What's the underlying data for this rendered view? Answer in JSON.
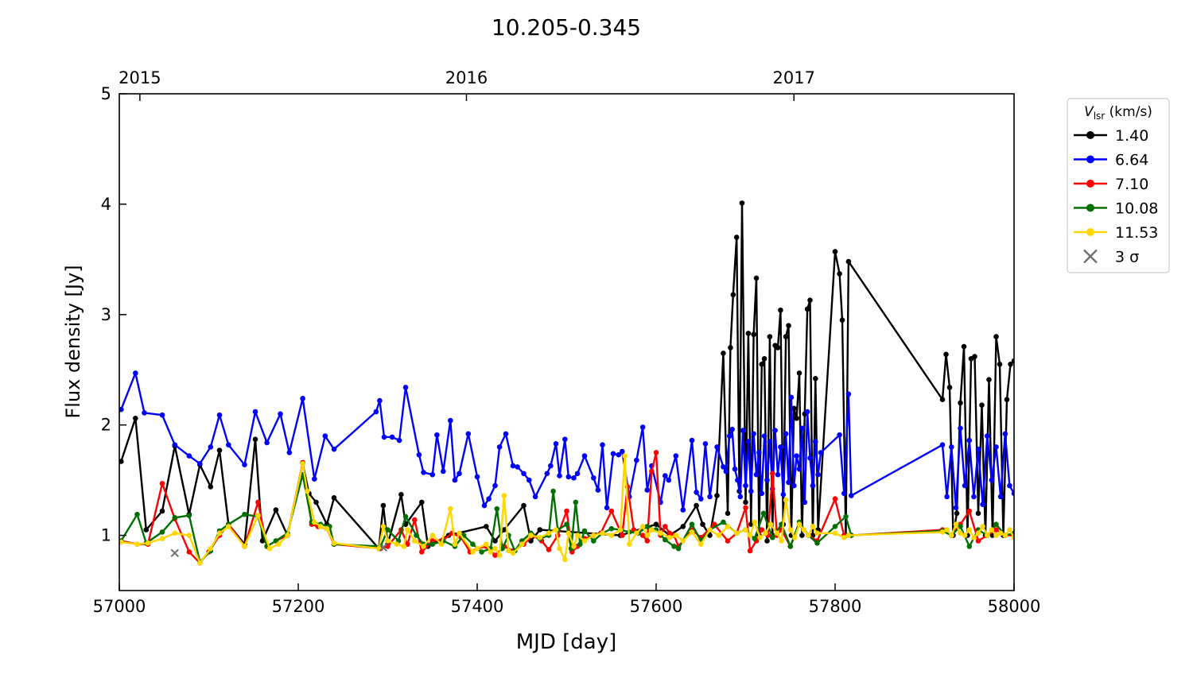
{
  "chart_data": {
    "type": "line",
    "title": "10.205-0.345",
    "xlabel": "MJD [day]",
    "ylabel": "Flux density [Jy]",
    "xlim": [
      57000,
      58000
    ],
    "ylim": [
      0.5,
      5.0
    ],
    "x_ticks": [
      {
        "value": 57000,
        "label": "57000"
      },
      {
        "value": 57200,
        "label": "57200"
      },
      {
        "value": 57400,
        "label": "57400"
      },
      {
        "value": 57600,
        "label": "57600"
      },
      {
        "value": 57800,
        "label": "57800"
      },
      {
        "value": 58000,
        "label": "58000"
      }
    ],
    "y_ticks": [
      {
        "value": 1,
        "label": "1"
      },
      {
        "value": 2,
        "label": "2"
      },
      {
        "value": 3,
        "label": "3"
      },
      {
        "value": 4,
        "label": "4"
      },
      {
        "value": 5,
        "label": "5"
      }
    ],
    "top_axis_ticks": [
      {
        "value": 57023,
        "label": "2015"
      },
      {
        "value": 57388,
        "label": "2016"
      },
      {
        "value": 57754,
        "label": "2017"
      }
    ],
    "legend": {
      "title_main": "V",
      "title_sub": "lsr",
      "title_unit": " (km/s)",
      "placement": "outside-right-top",
      "sigma_label": "3 σ",
      "sigma_color": "#707070"
    },
    "series": [
      {
        "name": "1.40",
        "color": "#000000",
        "x": [
          57002,
          57018,
          57030,
          57048,
          57062,
          57078,
          57090,
          57102,
          57112,
          57122,
          57140,
          57152,
          57160,
          57175,
          57188,
          57205,
          57212,
          57220,
          57232,
          57240,
          57290,
          57295,
          57300,
          57315,
          57320,
          57338,
          57345,
          57368,
          57410,
          57420,
          57430,
          57452,
          57460,
          57470,
          57560,
          57600,
          57615,
          57630,
          57645,
          57652,
          57660,
          57668,
          57675,
          57680,
          57683,
          57686,
          57690,
          57693,
          57696,
          57700,
          57703,
          57706,
          57709,
          57712,
          57715,
          57718,
          57721,
          57724,
          57727,
          57730,
          57733,
          57736,
          57739,
          57742,
          57745,
          57748,
          57751,
          57754,
          57757,
          57760,
          57763,
          57766,
          57769,
          57772,
          57775,
          57778,
          57781,
          57800,
          57805,
          57808,
          57812,
          57815,
          57920,
          57924,
          57928,
          57932,
          57936,
          57940,
          57944,
          57948,
          57952,
          57956,
          57960,
          57964,
          57968,
          57972,
          57976,
          57980,
          57984,
          57988,
          57992,
          57996,
          58000
        ],
        "y": [
          1.67,
          2.06,
          1.05,
          1.22,
          1.81,
          1.19,
          1.64,
          1.44,
          1.77,
          1.1,
          0.92,
          1.87,
          0.95,
          1.23,
          1.0,
          1.65,
          1.38,
          1.3,
          1.1,
          1.34,
          0.88,
          1.27,
          0.92,
          1.37,
          1.1,
          1.3,
          0.9,
          1.0,
          1.08,
          0.95,
          1.05,
          1.27,
          0.95,
          1.05,
          1.0,
          1.1,
          1.0,
          1.08,
          1.27,
          1.1,
          1.0,
          1.36,
          2.65,
          1.2,
          2.7,
          3.18,
          3.7,
          1.4,
          4.01,
          1.3,
          2.83,
          1.1,
          2.82,
          3.33,
          1.0,
          2.55,
          2.6,
          0.95,
          2.8,
          1.0,
          2.72,
          2.7,
          3.04,
          1.1,
          2.8,
          2.9,
          1.0,
          2.15,
          2.06,
          2.47,
          1.0,
          2.1,
          3.05,
          3.13,
          1.0,
          2.42,
          1.05,
          3.57,
          3.37,
          2.95,
          1.0,
          3.48,
          2.23,
          2.64,
          2.34,
          1.0,
          1.2,
          2.2,
          2.71,
          1.0,
          2.6,
          2.62,
          1.2,
          2.18,
          1.0,
          2.41,
          1.0,
          2.8,
          2.55,
          1.0,
          2.23,
          2.55,
          2.58
        ]
      },
      {
        "name": "6.64",
        "color": "#0000ff",
        "x": [
          57002,
          57018,
          57028,
          57048,
          57062,
          57078,
          57090,
          57102,
          57112,
          57122,
          57140,
          57152,
          57165,
          57180,
          57190,
          57205,
          57218,
          57230,
          57240,
          57287,
          57291,
          57296,
          57305,
          57313,
          57320,
          57335,
          57340,
          57350,
          57355,
          57362,
          57370,
          57375,
          57380,
          57390,
          57400,
          57408,
          57413,
          57420,
          57425,
          57432,
          57440,
          57445,
          57452,
          57458,
          57465,
          57478,
          57482,
          57488,
          57492,
          57498,
          57502,
          57508,
          57512,
          57520,
          57530,
          57535,
          57540,
          57545,
          57552,
          57558,
          57562,
          57570,
          57578,
          57585,
          57590,
          57595,
          57605,
          57610,
          57614,
          57622,
          57630,
          57640,
          57645,
          57650,
          57655,
          57660,
          57668,
          57675,
          57678,
          57682,
          57685,
          57688,
          57691,
          57694,
          57697,
          57700,
          57703,
          57706,
          57709,
          57712,
          57715,
          57718,
          57721,
          57724,
          57727,
          57730,
          57733,
          57736,
          57739,
          57742,
          57745,
          57748,
          57751,
          57754,
          57757,
          57760,
          57763,
          57766,
          57769,
          57772,
          57775,
          57778,
          57781,
          57784,
          57805,
          57810,
          57815,
          57818,
          57920,
          57925,
          57930,
          57935,
          57940,
          57945,
          57950,
          57955,
          57960,
          57965,
          57970,
          57975,
          57980,
          57985,
          57990,
          57995,
          58000
        ],
        "y": [
          2.14,
          2.47,
          2.11,
          2.09,
          1.82,
          1.72,
          1.65,
          1.8,
          2.09,
          1.82,
          1.64,
          2.12,
          1.84,
          2.1,
          1.75,
          2.24,
          1.51,
          1.9,
          1.78,
          2.12,
          2.22,
          1.89,
          1.89,
          1.86,
          2.34,
          1.73,
          1.57,
          1.55,
          1.91,
          1.58,
          2.04,
          1.5,
          1.56,
          1.92,
          1.53,
          1.27,
          1.33,
          1.45,
          1.8,
          1.92,
          1.63,
          1.62,
          1.56,
          1.5,
          1.35,
          1.56,
          1.63,
          1.83,
          1.54,
          1.87,
          1.53,
          1.52,
          1.56,
          1.72,
          1.52,
          1.41,
          1.82,
          1.25,
          1.74,
          1.73,
          1.76,
          1.35,
          1.68,
          1.98,
          1.41,
          1.63,
          1.3,
          1.54,
          1.5,
          1.72,
          1.23,
          1.86,
          1.39,
          1.33,
          1.83,
          1.35,
          1.8,
          1.62,
          1.58,
          1.9,
          1.96,
          1.6,
          1.5,
          1.35,
          1.95,
          1.45,
          1.85,
          1.4,
          1.92,
          1.55,
          1.75,
          1.38,
          1.9,
          1.5,
          1.85,
          1.42,
          1.95,
          1.55,
          1.8,
          1.37,
          1.92,
          1.48,
          2.25,
          1.45,
          1.72,
          1.6,
          1.97,
          1.3,
          2.12,
          1.7,
          1.45,
          1.85,
          1.55,
          1.75,
          1.91,
          1.38,
          2.28,
          1.36,
          1.82,
          1.35,
          1.8,
          1.25,
          1.97,
          1.45,
          1.86,
          1.35,
          1.78,
          1.28,
          1.9,
          1.5,
          1.8,
          1.35,
          1.92,
          1.45,
          1.38
        ]
      },
      {
        "name": "7.10",
        "color": "#ff0000",
        "x": [
          57002,
          57020,
          57032,
          57048,
          57062,
          57078,
          57090,
          57100,
          57112,
          57122,
          57140,
          57155,
          57165,
          57175,
          57188,
          57205,
          57215,
          57222,
          57232,
          57240,
          57292,
          57300,
          57315,
          57322,
          57330,
          57338,
          57350,
          57362,
          57372,
          57382,
          57392,
          57400,
          57410,
          57420,
          57430,
          57440,
          57452,
          57462,
          57472,
          57480,
          57490,
          57500,
          57506,
          57512,
          57520,
          57530,
          57538,
          57550,
          57562,
          57568,
          57575,
          57585,
          57590,
          57595,
          57600,
          57605,
          57610,
          57615,
          57620,
          57625,
          57640,
          57650,
          57665,
          57680,
          57690,
          57700,
          57705,
          57712,
          57718,
          57725,
          57730,
          57735,
          57740,
          57750,
          57760,
          57770,
          57780,
          57800,
          57810,
          57818,
          57920,
          57930,
          57940,
          57950,
          57960,
          57970,
          57980,
          57990,
          58000
        ],
        "y": [
          0.95,
          0.92,
          0.92,
          1.47,
          1.15,
          0.85,
          0.75,
          0.85,
          1.0,
          1.1,
          0.9,
          1.3,
          0.9,
          0.95,
          1.0,
          1.66,
          1.1,
          1.08,
          1.06,
          0.92,
          0.88,
          0.9,
          1.05,
          0.92,
          1.14,
          0.85,
          0.95,
          0.96,
          1.02,
          0.98,
          0.85,
          0.88,
          0.9,
          0.82,
          0.9,
          0.86,
          0.92,
          1.0,
          0.95,
          0.87,
          1.0,
          1.22,
          0.85,
          0.9,
          0.97,
          1.0,
          1.02,
          1.22,
          1.0,
          1.44,
          1.05,
          1.0,
          0.95,
          1.58,
          1.75,
          1.0,
          1.08,
          1.02,
          1.0,
          0.9,
          1.05,
          0.98,
          1.1,
          0.95,
          1.02,
          1.25,
          0.86,
          0.95,
          1.05,
          1.0,
          1.56,
          1.0,
          1.05,
          0.9,
          1.1,
          1.0,
          0.95,
          1.33,
          1.0,
          1.0,
          1.05,
          1.0,
          1.1,
          1.22,
          0.95,
          1.0,
          1.05,
          1.0,
          1.0
        ]
      },
      {
        "name": "10.08",
        "color": "#007000",
        "x": [
          57002,
          57020,
          57030,
          57048,
          57062,
          57078,
          57090,
          57102,
          57112,
          57122,
          57140,
          57155,
          57165,
          57175,
          57188,
          57205,
          57215,
          57225,
          57235,
          57240,
          57292,
          57300,
          57312,
          57320,
          57332,
          57340,
          57350,
          57362,
          57375,
          57385,
          57395,
          57405,
          57415,
          57422,
          57428,
          57435,
          57442,
          57450,
          57460,
          57470,
          57480,
          57485,
          57490,
          57500,
          57505,
          57510,
          57515,
          57520,
          57530,
          57540,
          57550,
          57560,
          57570,
          57580,
          57590,
          57600,
          57610,
          57620,
          57625,
          57640,
          57650,
          57660,
          57675,
          57690,
          57700,
          57710,
          57720,
          57730,
          57740,
          57750,
          57760,
          57770,
          57780,
          57800,
          57812,
          57818,
          57920,
          57930,
          57940,
          57950,
          57960,
          57970,
          57980,
          57990,
          58000
        ],
        "y": [
          0.95,
          1.19,
          0.93,
          1.03,
          1.16,
          1.18,
          0.76,
          0.86,
          1.04,
          1.1,
          1.19,
          1.17,
          0.9,
          0.95,
          1.02,
          1.55,
          1.12,
          1.1,
          1.08,
          0.92,
          0.9,
          1.05,
          0.95,
          1.17,
          1.0,
          0.92,
          0.92,
          0.95,
          0.9,
          1.0,
          0.92,
          0.85,
          0.88,
          1.24,
          0.88,
          1.0,
          0.86,
          0.95,
          1.02,
          0.97,
          1.0,
          1.4,
          1.05,
          1.1,
          0.88,
          1.3,
          0.92,
          1.04,
          0.95,
          1.02,
          1.06,
          1.05,
          1.03,
          1.02,
          1.08,
          1.05,
          0.96,
          0.9,
          0.88,
          1.1,
          0.95,
          1.05,
          1.12,
          1.02,
          1.05,
          0.97,
          1.2,
          0.98,
          1.1,
          0.9,
          1.12,
          1.0,
          0.93,
          1.08,
          1.17,
          1.0,
          1.04,
          1.0,
          1.08,
          0.9,
          1.05,
          1.0,
          1.1,
          1.0,
          1.02
        ]
      },
      {
        "name": "11.53",
        "color": "#ffd700",
        "x": [
          57002,
          57020,
          57032,
          57048,
          57062,
          57078,
          57090,
          57102,
          57112,
          57122,
          57140,
          57155,
          57168,
          57178,
          57188,
          57205,
          57210,
          57218,
          57225,
          57232,
          57240,
          57290,
          57295,
          57300,
          57310,
          57318,
          57322,
          57330,
          57340,
          57350,
          57360,
          57370,
          57375,
          57380,
          57395,
          57400,
          57410,
          57415,
          57420,
          57425,
          57430,
          57435,
          57440,
          57450,
          57460,
          57470,
          57480,
          57488,
          57492,
          57498,
          57502,
          57508,
          57512,
          57520,
          57530,
          57540,
          57550,
          57560,
          57565,
          57570,
          57578,
          57585,
          57590,
          57595,
          57605,
          57615,
          57622,
          57630,
          57640,
          57650,
          57660,
          57670,
          57680,
          57690,
          57700,
          57705,
          57710,
          57716,
          57722,
          57728,
          57735,
          57740,
          57745,
          57750,
          57755,
          57760,
          57765,
          57770,
          57775,
          57780,
          57800,
          57810,
          57815,
          57920,
          57925,
          57930,
          57935,
          57940,
          57945,
          57950,
          57955,
          57960,
          57965,
          57970,
          57975,
          57980,
          57985,
          57990,
          57995,
          58000
        ],
        "y": [
          0.94,
          0.92,
          0.93,
          0.97,
          1.02,
          1.0,
          0.75,
          0.88,
          1.02,
          1.08,
          0.9,
          1.18,
          0.88,
          0.92,
          1.0,
          1.65,
          1.4,
          1.12,
          1.08,
          1.06,
          0.93,
          0.88,
          1.08,
          0.95,
          0.92,
          0.9,
          1.05,
          0.95,
          0.9,
          1.0,
          0.92,
          1.24,
          0.92,
          1.02,
          0.85,
          0.88,
          0.92,
          0.85,
          0.88,
          0.82,
          1.36,
          0.86,
          0.84,
          0.92,
          1.0,
          0.98,
          1.02,
          1.05,
          0.88,
          0.78,
          1.02,
          0.9,
          1.0,
          0.95,
          1.0,
          1.02,
          1.0,
          1.05,
          1.72,
          0.92,
          1.02,
          1.08,
          1.0,
          1.05,
          1.02,
          0.98,
          1.0,
          0.95,
          1.03,
          0.92,
          1.05,
          1.0,
          1.08,
          1.02,
          1.05,
          1.0,
          1.12,
          0.98,
          1.02,
          1.1,
          1.02,
          0.95,
          1.32,
          1.05,
          0.98,
          1.1,
          1.05,
          1.0,
          1.08,
          1.02,
          1.02,
          0.98,
          1.0,
          1.03,
          1.05,
          1.0,
          1.1,
          1.02,
          1.0,
          1.05,
          0.98,
          1.02,
          1.08,
          1.0,
          1.05,
          1.0,
          1.02,
          1.0,
          1.05,
          0.98
        ]
      }
    ],
    "sigma_points": {
      "x": [
        57062,
        57295
      ],
      "y": [
        0.84,
        0.89
      ]
    }
  }
}
